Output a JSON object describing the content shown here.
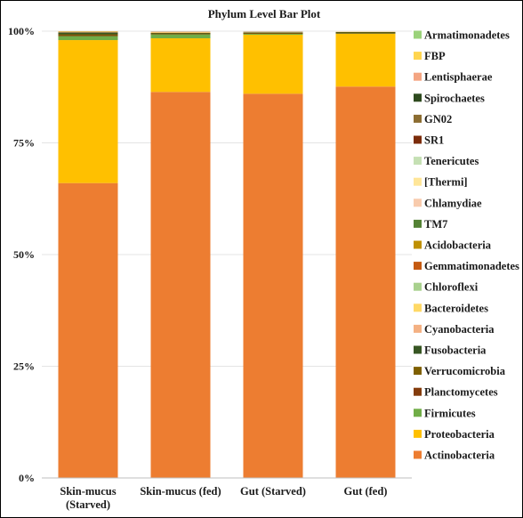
{
  "chart_data": {
    "type": "bar",
    "stacked": true,
    "title": "Phylum Level Bar Plot",
    "categories": [
      [
        "Skin-mucus",
        "(Starved)"
      ],
      [
        "Skin-mucus (fed)"
      ],
      [
        "Gut (Starved)"
      ],
      [
        "Gut (fed)"
      ]
    ],
    "yticks": [
      "0%",
      "25%",
      "50%",
      "75%",
      "100%"
    ],
    "ylim": [
      0,
      100
    ],
    "legend_position": "right",
    "series": [
      {
        "name": "Actinobacteria",
        "color": "#ED7D31",
        "values": [
          66.0,
          86.4,
          86.0,
          87.6
        ]
      },
      {
        "name": "Proteobacteria",
        "color": "#FFC000",
        "values": [
          32.0,
          12.0,
          13.2,
          11.8
        ]
      },
      {
        "name": "Firmicutes",
        "color": "#70AD47",
        "values": [
          0.9,
          0.9,
          0.2,
          0.1
        ]
      },
      {
        "name": "Planctomycetes",
        "color": "#843C0C",
        "values": [
          0.2,
          0.1,
          0.1,
          0.1
        ]
      },
      {
        "name": "Verrucomicrobia",
        "color": "#7F6000",
        "values": [
          0.2,
          0.1,
          0.1,
          0.1
        ]
      },
      {
        "name": "Fusobacteria",
        "color": "#375623",
        "values": [
          0.4,
          0.1,
          0.1,
          0.1
        ]
      },
      {
        "name": "Cyanobacteria",
        "color": "#F4B183",
        "values": [
          0.1,
          0.1,
          0.05,
          0.05
        ]
      },
      {
        "name": "Bacteroidetes",
        "color": "#FFD966",
        "values": [
          0.1,
          0.1,
          0.05,
          0.05
        ]
      },
      {
        "name": "Chloroflexi",
        "color": "#A9D18E",
        "values": [
          0.05,
          0.05,
          0.05,
          0.0
        ]
      },
      {
        "name": "Gemmatimonadetes",
        "color": "#C55A11",
        "values": [
          0.05,
          0.05,
          0.05,
          0.0
        ]
      },
      {
        "name": "Acidobacteria",
        "color": "#BF9000",
        "values": [
          0.0,
          0.0,
          0.0,
          0.0
        ]
      },
      {
        "name": "TM7",
        "color": "#548235",
        "values": [
          0.0,
          0.0,
          0.0,
          0.0
        ]
      },
      {
        "name": "Chlamydiae",
        "color": "#F8CBAD",
        "values": [
          0.0,
          0.0,
          0.0,
          0.0
        ]
      },
      {
        "name": "[Thermi]",
        "color": "#FFE699",
        "values": [
          0.0,
          0.0,
          0.0,
          0.0
        ]
      },
      {
        "name": "Tenericutes",
        "color": "#C5E0B4",
        "values": [
          0.0,
          0.0,
          0.0,
          0.0
        ]
      },
      {
        "name": "SR1",
        "color": "#7B2C0A",
        "values": [
          0.0,
          0.0,
          0.0,
          0.0
        ]
      },
      {
        "name": "GN02",
        "color": "#8C6D31",
        "values": [
          0.0,
          0.0,
          0.0,
          0.0
        ]
      },
      {
        "name": "Spirochaetes",
        "color": "#2E4A1E",
        "values": [
          0.0,
          0.0,
          0.0,
          0.0
        ]
      },
      {
        "name": "Lentisphaerae",
        "color": "#F4A582",
        "values": [
          0.0,
          0.0,
          0.0,
          0.0
        ]
      },
      {
        "name": "FBP",
        "color": "#FFD54F",
        "values": [
          0.0,
          0.0,
          0.0,
          0.0
        ]
      },
      {
        "name": "Armatimonadetes",
        "color": "#9BD27A",
        "values": [
          0.0,
          0.0,
          0.0,
          0.0
        ]
      }
    ]
  }
}
